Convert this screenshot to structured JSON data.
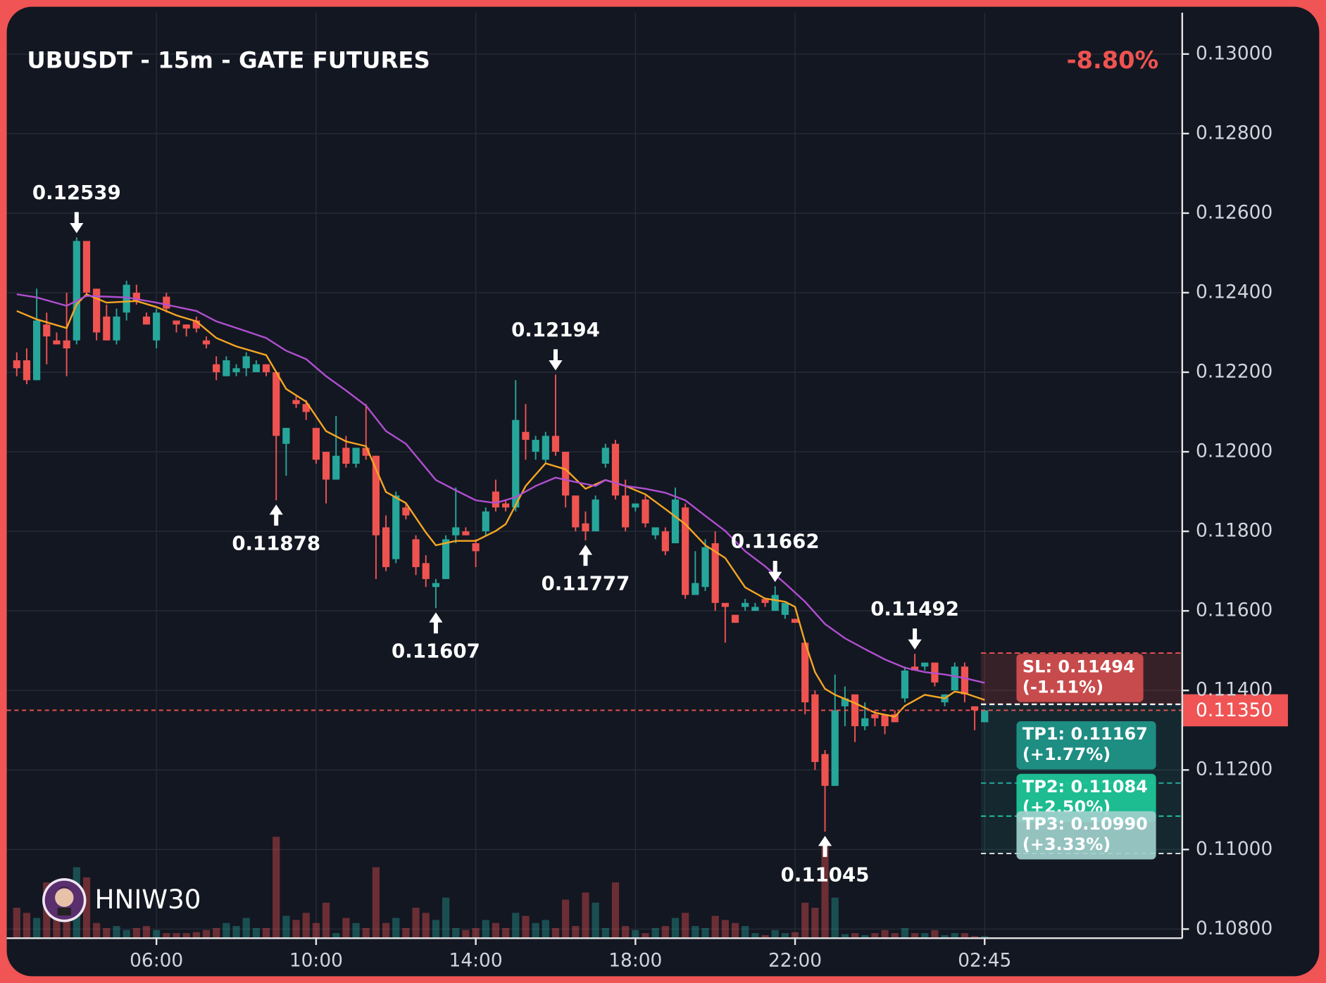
{
  "chart_data": {
    "type": "candlestick",
    "title": "UBUSDT - 15m - GATE FUTURES",
    "change": "-8.80%",
    "watermark": "HNIW30",
    "categories": [
      null,
      null,
      null,
      null,
      null,
      null,
      null,
      null,
      null,
      null,
      null,
      null,
      null,
      null,
      "06:00",
      null,
      null,
      null,
      null,
      null,
      null,
      null,
      null,
      null,
      null,
      null,
      null,
      null,
      null,
      null,
      "10:00",
      null,
      null,
      null,
      null,
      null,
      null,
      null,
      null,
      null,
      null,
      null,
      null,
      null,
      null,
      null,
      "14:00",
      null,
      null,
      null,
      null,
      null,
      null,
      null,
      null,
      null,
      null,
      null,
      null,
      null,
      null,
      null,
      "18:00",
      null,
      null,
      null,
      null,
      null,
      null,
      null,
      null,
      null,
      null,
      null,
      null,
      null,
      null,
      null,
      "22:00",
      null,
      null,
      null,
      null,
      null,
      null,
      null,
      null,
      null,
      null,
      null,
      null,
      null,
      null,
      null,
      null,
      null,
      null,
      "02:45"
    ],
    "open": [
      0.1223,
      0.1223,
      0.1218,
      0.1232,
      0.1228,
      0.1228,
      0.1228,
      0.1253,
      0.1241,
      0.1234,
      0.1228,
      0.1235,
      0.124,
      0.1234,
      0.1228,
      0.1239,
      0.1233,
      0.1232,
      0.1233,
      0.1228,
      0.1222,
      0.1219,
      0.122,
      0.1221,
      0.122,
      0.1222,
      0.122,
      0.1202,
      0.1213,
      0.1212,
      0.1206,
      0.12,
      0.1193,
      0.1201,
      0.1197,
      0.1201,
      0.1199,
      0.1181,
      0.1173,
      0.1186,
      0.1178,
      0.1172,
      0.1166,
      0.1168,
      0.1179,
      0.118,
      0.1177,
      0.118,
      0.119,
      0.1187,
      0.1186,
      0.1205,
      0.12,
      0.1198,
      0.1204,
      0.12,
      0.1189,
      0.1182,
      0.118,
      0.1197,
      0.1202,
      0.1189,
      0.1186,
      0.1188,
      0.1179,
      0.118,
      0.1177,
      0.1186,
      0.1164,
      0.1166,
      0.1177,
      0.1162,
      0.1159,
      0.1161,
      0.116,
      0.1163,
      0.116,
      0.1159,
      0.1158,
      0.1152,
      0.1139,
      0.1124,
      0.1116,
      0.1136,
      0.1139,
      0.1131,
      0.1134,
      0.1134,
      0.1134,
      0.1138,
      0.1146,
      0.1146,
      0.1147,
      0.1137,
      0.114,
      0.1146,
      0.1136,
      0.1132
    ],
    "high": [
      0.1225,
      0.1226,
      0.1241,
      0.1235,
      0.123,
      0.124,
      0.12539,
      0.1253,
      0.1241,
      0.1237,
      0.1236,
      0.1243,
      0.1242,
      0.1235,
      0.1236,
      0.124,
      0.1233,
      0.1232,
      0.1234,
      0.1229,
      0.1224,
      0.1224,
      0.1222,
      0.1225,
      0.1223,
      0.1222,
      0.122,
      0.1206,
      0.1214,
      0.1213,
      0.1206,
      0.12,
      0.1209,
      0.1204,
      0.1201,
      0.1212,
      0.1199,
      0.1184,
      0.119,
      0.1187,
      0.1179,
      0.1174,
      0.1168,
      0.1179,
      0.1191,
      0.1181,
      0.1178,
      0.1186,
      0.1193,
      0.1188,
      0.1218,
      0.1212,
      0.1204,
      0.1205,
      0.12194,
      0.12,
      0.1189,
      0.1185,
      0.1189,
      0.1202,
      0.1203,
      0.1193,
      0.1187,
      0.1189,
      0.1181,
      0.1181,
      0.1191,
      0.1187,
      0.1175,
      0.1178,
      0.118,
      0.1162,
      0.1159,
      0.1163,
      0.1162,
      0.1163,
      0.11662,
      0.1162,
      0.1158,
      0.1152,
      0.114,
      0.1125,
      0.1144,
      0.1141,
      0.1139,
      0.1137,
      0.1135,
      0.1134,
      0.1135,
      0.1146,
      0.11492,
      0.1147,
      0.1147,
      0.1139,
      0.1147,
      0.1147,
      0.1136,
      0.1135
    ],
    "low": [
      0.1219,
      0.1217,
      0.1218,
      0.1222,
      0.1227,
      0.1219,
      0.1227,
      0.1239,
      0.1228,
      0.1228,
      0.1227,
      0.1233,
      0.1237,
      0.1232,
      0.1226,
      0.1235,
      0.123,
      0.1229,
      0.123,
      0.1226,
      0.1218,
      0.1219,
      0.1219,
      0.1219,
      0.122,
      0.1219,
      0.11878,
      0.1194,
      0.1211,
      0.1208,
      0.1197,
      0.1187,
      0.1193,
      0.1196,
      0.1196,
      0.1198,
      0.1168,
      0.117,
      0.1172,
      0.1183,
      0.1169,
      0.1166,
      0.11607,
      0.1168,
      0.1177,
      0.1179,
      0.1171,
      0.1179,
      0.1185,
      0.1185,
      0.1185,
      0.1198,
      0.1198,
      0.1197,
      0.1199,
      0.1186,
      0.118,
      0.11777,
      0.118,
      0.1196,
      0.1188,
      0.118,
      0.1185,
      0.1181,
      0.1178,
      0.1174,
      0.1177,
      0.1163,
      0.1164,
      0.1165,
      0.116,
      0.1152,
      0.1157,
      0.116,
      0.116,
      0.1161,
      0.116,
      0.1158,
      0.1157,
      0.1134,
      0.112,
      0.11045,
      0.1116,
      0.1131,
      0.1127,
      0.113,
      0.1131,
      0.1129,
      0.1132,
      0.1137,
      0.1145,
      0.1145,
      0.1141,
      0.1136,
      0.114,
      0.1137,
      0.113,
      0.1132
    ],
    "close": [
      0.1221,
      0.1218,
      0.1233,
      0.1229,
      0.1227,
      0.1226,
      0.1253,
      0.124,
      0.123,
      0.1228,
      0.1234,
      0.1242,
      0.1238,
      0.1232,
      0.1235,
      0.1236,
      0.1232,
      0.1231,
      0.1231,
      0.1227,
      0.122,
      0.1223,
      0.1221,
      0.1224,
      0.1222,
      0.122,
      0.1204,
      0.1206,
      0.1212,
      0.121,
      0.1198,
      0.1193,
      0.1199,
      0.1197,
      0.1201,
      0.1199,
      0.1179,
      0.1171,
      0.1189,
      0.1184,
      0.1171,
      0.1168,
      0.1167,
      0.1178,
      0.1181,
      0.1179,
      0.1175,
      0.1185,
      0.1186,
      0.1186,
      0.1208,
      0.1203,
      0.1203,
      0.1204,
      0.12,
      0.1189,
      0.1181,
      0.118,
      0.1188,
      0.1201,
      0.1189,
      0.1181,
      0.1187,
      0.1182,
      0.1181,
      0.1175,
      0.1188,
      0.1164,
      0.1167,
      0.1176,
      0.1162,
      0.1161,
      0.1157,
      0.1162,
      0.1161,
      0.1162,
      0.1164,
      0.1162,
      0.1157,
      0.1137,
      0.1122,
      0.1116,
      0.1135,
      0.1138,
      0.1131,
      0.1133,
      0.1133,
      0.1131,
      0.1132,
      0.1145,
      0.1145,
      0.1147,
      0.1142,
      0.1139,
      0.1146,
      0.1139,
      0.1135,
      0.1135
    ],
    "volume": [
      30,
      25,
      20,
      55,
      35,
      30,
      70,
      60,
      15,
      10,
      12,
      8,
      10,
      12,
      8,
      5,
      5,
      5,
      6,
      8,
      10,
      15,
      12,
      20,
      10,
      10,
      100,
      22,
      18,
      25,
      15,
      35,
      5,
      20,
      15,
      10,
      70,
      15,
      20,
      10,
      30,
      25,
      18,
      40,
      10,
      8,
      10,
      18,
      15,
      10,
      25,
      22,
      15,
      18,
      10,
      38,
      12,
      45,
      35,
      10,
      55,
      12,
      8,
      5,
      10,
      12,
      20,
      25,
      12,
      10,
      22,
      18,
      15,
      12,
      5,
      3,
      8,
      5,
      6,
      35,
      30,
      95,
      40,
      4,
      5,
      3,
      5,
      8,
      5,
      10,
      5,
      5,
      8,
      3,
      5,
      5,
      2,
      2
    ],
    "up_color": "#26a69a",
    "down_color": "#ef5350",
    "ma_lines": [
      {
        "color": "#f5a623",
        "x": [
          0,
          2,
          5,
          6,
          7,
          9,
          12,
          14,
          16,
          18,
          20,
          22,
          25,
          27,
          29,
          31,
          33,
          35,
          37,
          39,
          41,
          42,
          44,
          46,
          48,
          49,
          51,
          53,
          55,
          57,
          59,
          61,
          63,
          65,
          67,
          69,
          71,
          73,
          75,
          77,
          78,
          79,
          80,
          81,
          82,
          84,
          86,
          88,
          89,
          91,
          93,
          94,
          95,
          97
        ],
        "values": [
          0.12354,
          0.12333,
          0.12311,
          0.12371,
          0.12396,
          0.12375,
          0.12379,
          0.12364,
          0.12343,
          0.12328,
          0.12286,
          0.12265,
          0.12243,
          0.12158,
          0.12126,
          0.12052,
          0.12026,
          0.12014,
          0.11899,
          0.11871,
          0.11797,
          0.11765,
          0.11776,
          0.11776,
          0.11801,
          0.11818,
          0.11914,
          0.11971,
          0.11956,
          0.11907,
          0.11929,
          0.11914,
          0.11893,
          0.11856,
          0.11818,
          0.11765,
          0.11733,
          0.11659,
          0.11631,
          0.11623,
          0.1161,
          0.11521,
          0.11446,
          0.11404,
          0.11389,
          0.11368,
          0.11344,
          0.11334,
          0.11361,
          0.11389,
          0.1138,
          0.11397,
          0.11393,
          0.11376
        ]
      },
      {
        "color": "#b04fd0",
        "x": [
          0,
          2,
          5,
          7,
          11,
          14,
          18,
          20,
          23,
          25,
          27,
          29,
          31,
          33,
          35,
          37,
          39,
          42,
          44,
          46,
          48,
          50,
          52,
          54,
          56,
          58,
          59,
          61,
          63,
          65,
          67,
          69,
          71,
          73,
          75,
          77,
          79,
          81,
          83,
          85,
          87,
          89,
          91,
          93,
          95,
          97
        ],
        "values": [
          0.12396,
          0.12388,
          0.12367,
          0.12392,
          0.12388,
          0.12375,
          0.12354,
          0.12328,
          0.12303,
          0.12286,
          0.12254,
          0.12233,
          0.1219,
          0.12154,
          0.12116,
          0.12052,
          0.1202,
          0.11929,
          0.11903,
          0.11878,
          0.11871,
          0.11886,
          0.11914,
          0.11935,
          0.11924,
          0.11914,
          0.11929,
          0.11914,
          0.11907,
          0.11897,
          0.11878,
          0.11839,
          0.11801,
          0.1175,
          0.11712,
          0.11669,
          0.11623,
          0.11567,
          0.11531,
          0.11504,
          0.11478,
          0.11457,
          0.11446,
          0.1144,
          0.11431,
          0.11419
        ]
      }
    ],
    "annotations": [
      {
        "x": 6,
        "value": 0.12539,
        "kind": "high"
      },
      {
        "x": 26,
        "value": 0.11878,
        "kind": "low"
      },
      {
        "x": 42,
        "value": 0.11607,
        "kind": "low"
      },
      {
        "x": 54,
        "value": 0.12194,
        "kind": "high"
      },
      {
        "x": 57,
        "value": 0.11777,
        "kind": "low"
      },
      {
        "x": 76,
        "value": 0.11662,
        "kind": "high"
      },
      {
        "x": 81,
        "value": 0.11045,
        "kind": "low"
      },
      {
        "x": 90,
        "value": 0.11492,
        "kind": "high"
      }
    ],
    "current_price": {
      "value": 0.1135,
      "label": "0.11350"
    },
    "entry": 0.11365,
    "levels": [
      {
        "label": "SL: 0.11494",
        "note": "(-1.11%)",
        "value": 0.11494,
        "color": "#e05252",
        "line_color": "#ef5350"
      },
      {
        "label": "TP1: 0.11167",
        "note": "(+1.77%)",
        "value": 0.11167,
        "color": "#20968a",
        "line_color": "#26a69a"
      },
      {
        "label": "TP2: 0.11084",
        "note": "(+2.50%)",
        "value": 0.11084,
        "color": "#1ec99a",
        "line_color": "#1ec99a"
      },
      {
        "label": "TP3: 0.10990",
        "note": "(+3.33%)",
        "value": 0.1099,
        "color": "#9fcfcc",
        "line_color": "#e6e6e6"
      }
    ],
    "xlim": [
      -1,
      116.8
    ],
    "ylim": [
      0.10777,
      0.13104
    ],
    "yticks": [
      {
        "value": 0.108,
        "label": "0.10800"
      },
      {
        "value": 0.11,
        "label": "0.11000"
      },
      {
        "value": 0.112,
        "label": "0.11200"
      },
      {
        "value": 0.114,
        "label": "0.11400"
      },
      {
        "value": 0.116,
        "label": "0.11600"
      },
      {
        "value": 0.118,
        "label": "0.11800"
      },
      {
        "value": 0.12,
        "label": "0.12000"
      },
      {
        "value": 0.122,
        "label": "0.12200"
      },
      {
        "value": 0.124,
        "label": "0.12400"
      },
      {
        "value": 0.126,
        "label": "0.12600"
      },
      {
        "value": 0.128,
        "label": "0.12800"
      },
      {
        "value": 0.13,
        "label": "0.13000"
      }
    ],
    "grid": true
  }
}
